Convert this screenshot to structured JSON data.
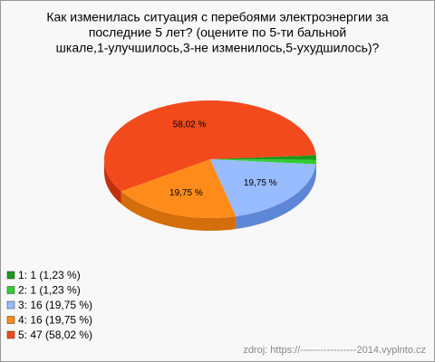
{
  "chart_data": {
    "type": "pie",
    "title": [
      "Как изменилась ситуация с перебоями электроэнергии за",
      "последние 5 лет? (оцените по 5-ти бальной",
      "шкале,1-улучшилось,3-не изменилось,5-ухудшилось)?"
    ],
    "categories": [
      "1",
      "2",
      "3",
      "4",
      "5"
    ],
    "values": [
      1.23,
      1.23,
      19.75,
      19.75,
      58.02
    ],
    "counts": [
      1,
      1,
      16,
      16,
      47
    ],
    "value_labels": [
      null,
      null,
      "19,75 %",
      "19,75 %",
      "58,02 %"
    ],
    "legend_labels": [
      "1: 1 (1,23 %)",
      "2: 1 (1,23 %)",
      "3: 16 (19,75 %)",
      "4: 16 (19,75 %)",
      "5: 47 (58,02 %)"
    ],
    "colors": [
      "#1a9a1a",
      "#33cc33",
      "#99bbff",
      "#ff8c1a",
      "#f24a1d"
    ],
    "side_colors": [
      "#117a11",
      "#22a022",
      "#5e86d6",
      "#d46e0a",
      "#c2300c"
    ],
    "source": "zdroj: https://-----------------2014.vyplnto.cz"
  }
}
